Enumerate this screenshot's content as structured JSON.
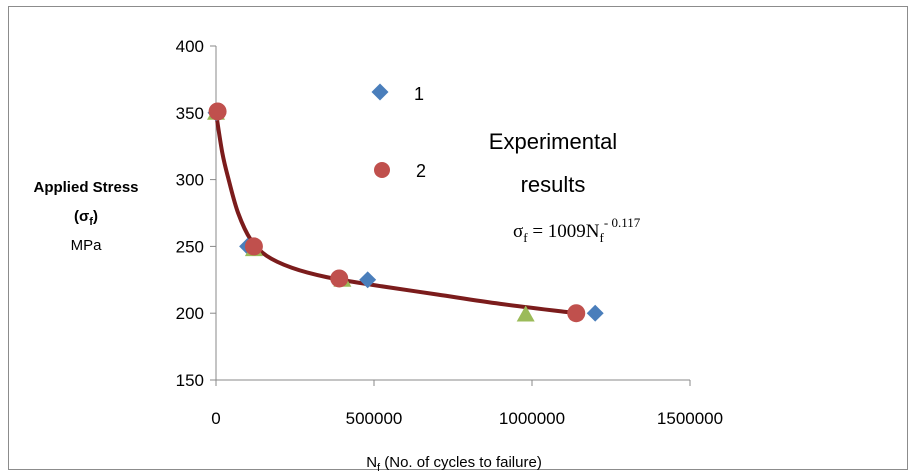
{
  "chart_data": {
    "type": "scatter",
    "title": "",
    "xlabel": {
      "symbol": "N",
      "subscript": "f",
      "text": " (No. of cycles to failure)"
    },
    "ylabel": {
      "line1": "Applied Stress",
      "line2_open": "(σ",
      "line2_sub": "f",
      "line2_close": ")",
      "line3": "MPa"
    },
    "xlim": [
      0,
      1500000
    ],
    "ylim": [
      150,
      400
    ],
    "x_ticks": [
      0,
      500000,
      1000000,
      1500000
    ],
    "x_tick_labels": [
      "0",
      "500000",
      "1000000",
      "1500000"
    ],
    "y_ticks": [
      150,
      200,
      250,
      300,
      350,
      400
    ],
    "y_tick_labels": [
      "150",
      "200",
      "250",
      "300",
      "350",
      "400"
    ],
    "grid": false,
    "legend": {
      "placement": "inside-top-center",
      "entries": [
        {
          "label": "1",
          "marker": "diamond",
          "color": "#4a7ebb"
        },
        {
          "label": "2",
          "marker": "circle",
          "color": "#c0504d"
        }
      ]
    },
    "series": [
      {
        "name": "1",
        "marker": "diamond",
        "color": "#4a7ebb",
        "points": [
          [
            0,
            350
          ],
          [
            100000,
            250
          ],
          [
            480000,
            225
          ],
          [
            1200000,
            200
          ]
        ]
      },
      {
        "name": "2",
        "marker": "circle",
        "color": "#c0504d",
        "points": [
          [
            5000,
            351
          ],
          [
            120000,
            250
          ],
          [
            390000,
            226
          ],
          [
            1140000,
            200
          ]
        ]
      },
      {
        "marker": "triangle",
        "color": "#9bbb59",
        "points": [
          [
            0,
            350
          ],
          [
            120000,
            248
          ],
          [
            400000,
            225
          ],
          [
            980000,
            199
          ]
        ]
      }
    ],
    "fit_curve": {
      "color": "#7b1c1c",
      "points": [
        [
          0,
          350
        ],
        [
          20000,
          320
        ],
        [
          40000,
          300
        ],
        [
          70000,
          275
        ],
        [
          110000,
          255
        ],
        [
          160000,
          243
        ],
        [
          240000,
          234
        ],
        [
          350000,
          227
        ],
        [
          500000,
          221
        ],
        [
          700000,
          214
        ],
        [
          900000,
          207
        ],
        [
          1140000,
          200
        ]
      ]
    },
    "annotations": {
      "experimental_line1": "Experimental",
      "experimental_line2": "results",
      "equation_lhs": "σ",
      "equation_lhs_sub": "f",
      "equation_mid": " = 1009N",
      "equation_rhs_sub": "f",
      "equation_sup": "- 0.117"
    }
  }
}
